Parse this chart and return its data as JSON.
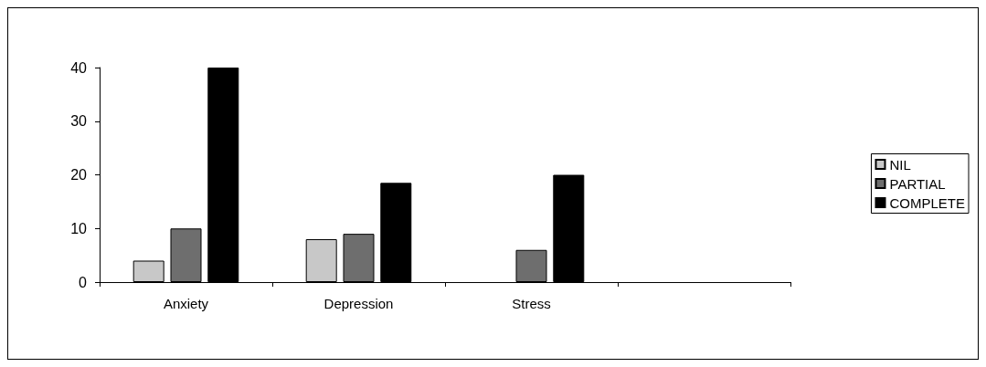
{
  "chart_data": {
    "type": "bar",
    "categories": [
      "Anxiety",
      "Depression",
      "Stress",
      null
    ],
    "series": [
      {
        "name": "NIL",
        "color": "#c8c8c8",
        "values": [
          4,
          8,
          null,
          null
        ]
      },
      {
        "name": "PARTIAL",
        "color": "#6e6e6e",
        "values": [
          10,
          9,
          6,
          null
        ]
      },
      {
        "name": "COMPLETE",
        "color": "#000000",
        "values": [
          40,
          18.5,
          20,
          null
        ]
      }
    ],
    "ylim": [
      0,
      40
    ],
    "yticks": [
      0,
      10,
      20,
      30,
      40
    ],
    "grid": false,
    "legend": "right"
  }
}
